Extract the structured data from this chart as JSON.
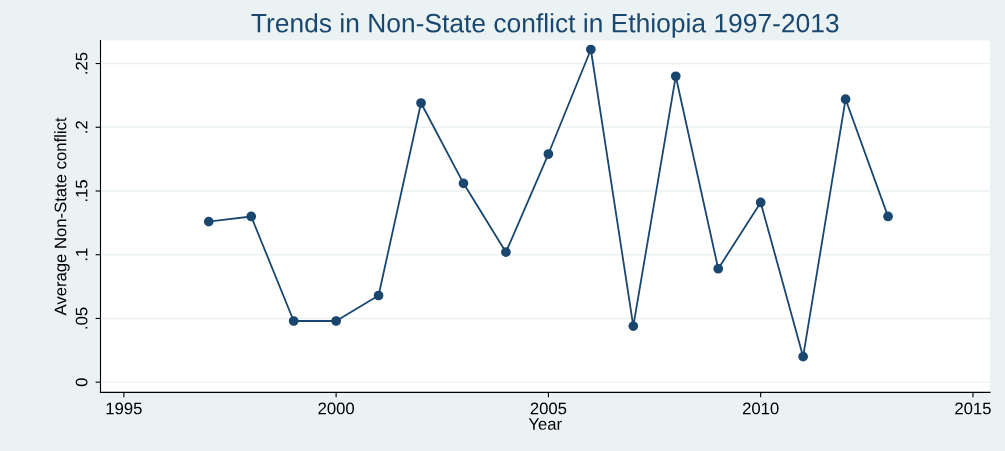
{
  "chart_data": {
    "type": "line",
    "title": "Trends in Non-State conflict in Ethiopia 1997-2013",
    "xlabel": "Year",
    "ylabel": "Average Non-State conflict",
    "x": [
      1997,
      1998,
      1999,
      2000,
      2001,
      2002,
      2003,
      2004,
      2005,
      2006,
      2007,
      2008,
      2009,
      2010,
      2011,
      2012,
      2013
    ],
    "series": [
      {
        "color": "#1a476f",
        "values": [
          0.126,
          0.13,
          0.048,
          0.048,
          0.068,
          0.219,
          0.156,
          0.102,
          0.179,
          0.261,
          0.044,
          0.24,
          0.089,
          0.141,
          0.02,
          0.222,
          0.13
        ]
      }
    ],
    "xlim": [
      1994.45,
      2015.4
    ],
    "xticks": [
      1995,
      2000,
      2005,
      2010,
      2015
    ],
    "ylim": [
      -0.008,
      0.268
    ],
    "yticks": [
      {
        "value": 0,
        "label": "0"
      },
      {
        "value": 0.05,
        "label": ".05"
      },
      {
        "value": 0.1,
        "label": ".1"
      },
      {
        "value": 0.15,
        "label": ".15"
      },
      {
        "value": 0.2,
        "label": ".2"
      },
      {
        "value": 0.25,
        "label": ".25"
      }
    ],
    "grid": "y",
    "marker": "circle",
    "line_style": "solid"
  }
}
